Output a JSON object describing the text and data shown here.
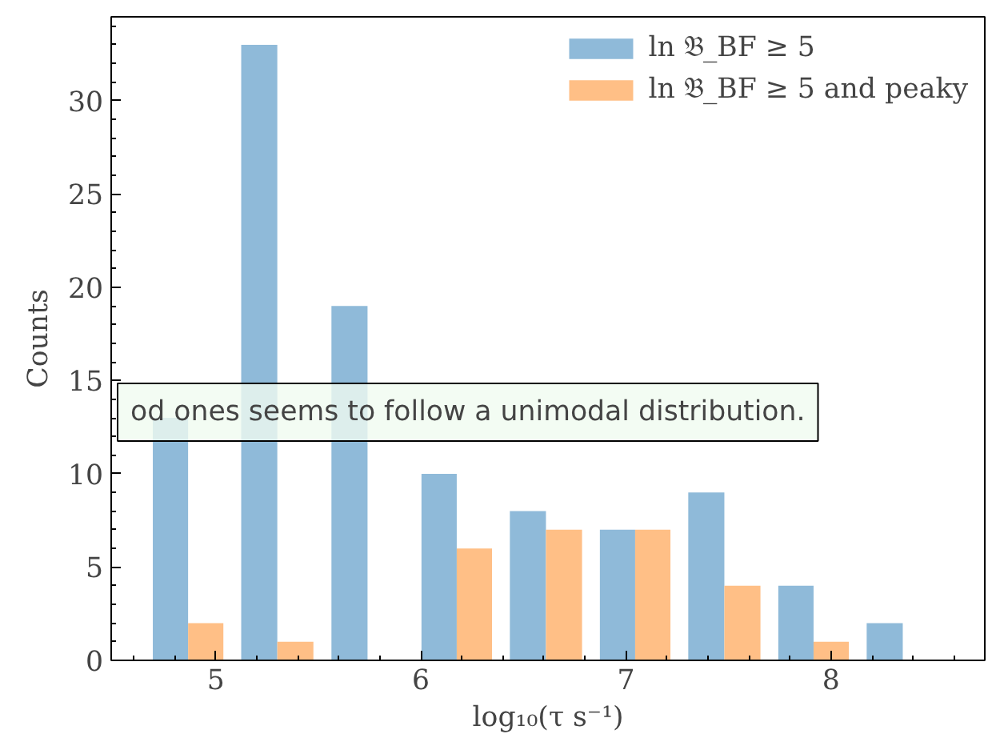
{
  "chart_data": {
    "type": "histogram",
    "xlabel": "log₁₀(τ s⁻¹)",
    "ylabel": "Counts",
    "bins": [
      4.65,
      5.08,
      5.52,
      5.96,
      6.39,
      6.83,
      7.26,
      7.7,
      8.13,
      8.57
    ],
    "series": [
      {
        "name": "ln 𝔅_BF ≥ 5",
        "color": "#8fbad9",
        "values": [
          13,
          33,
          19,
          10,
          8,
          7,
          9,
          4,
          2
        ]
      },
      {
        "name": "ln 𝔅_BF ≥ 5 and peaky",
        "color": "#ffbf86",
        "values": [
          2,
          1,
          0,
          6,
          7,
          7,
          4,
          1,
          0
        ]
      }
    ],
    "xlim": [
      4.49,
      8.75
    ],
    "ylim": [
      0,
      34.5
    ],
    "xticks": [
      5,
      6,
      7,
      8
    ],
    "yticks": [
      0,
      5,
      10,
      15,
      20,
      25,
      30
    ],
    "legend": "top right",
    "grid": false,
    "annotations": [
      "od ones seems to follow a unimodal distribution."
    ]
  }
}
